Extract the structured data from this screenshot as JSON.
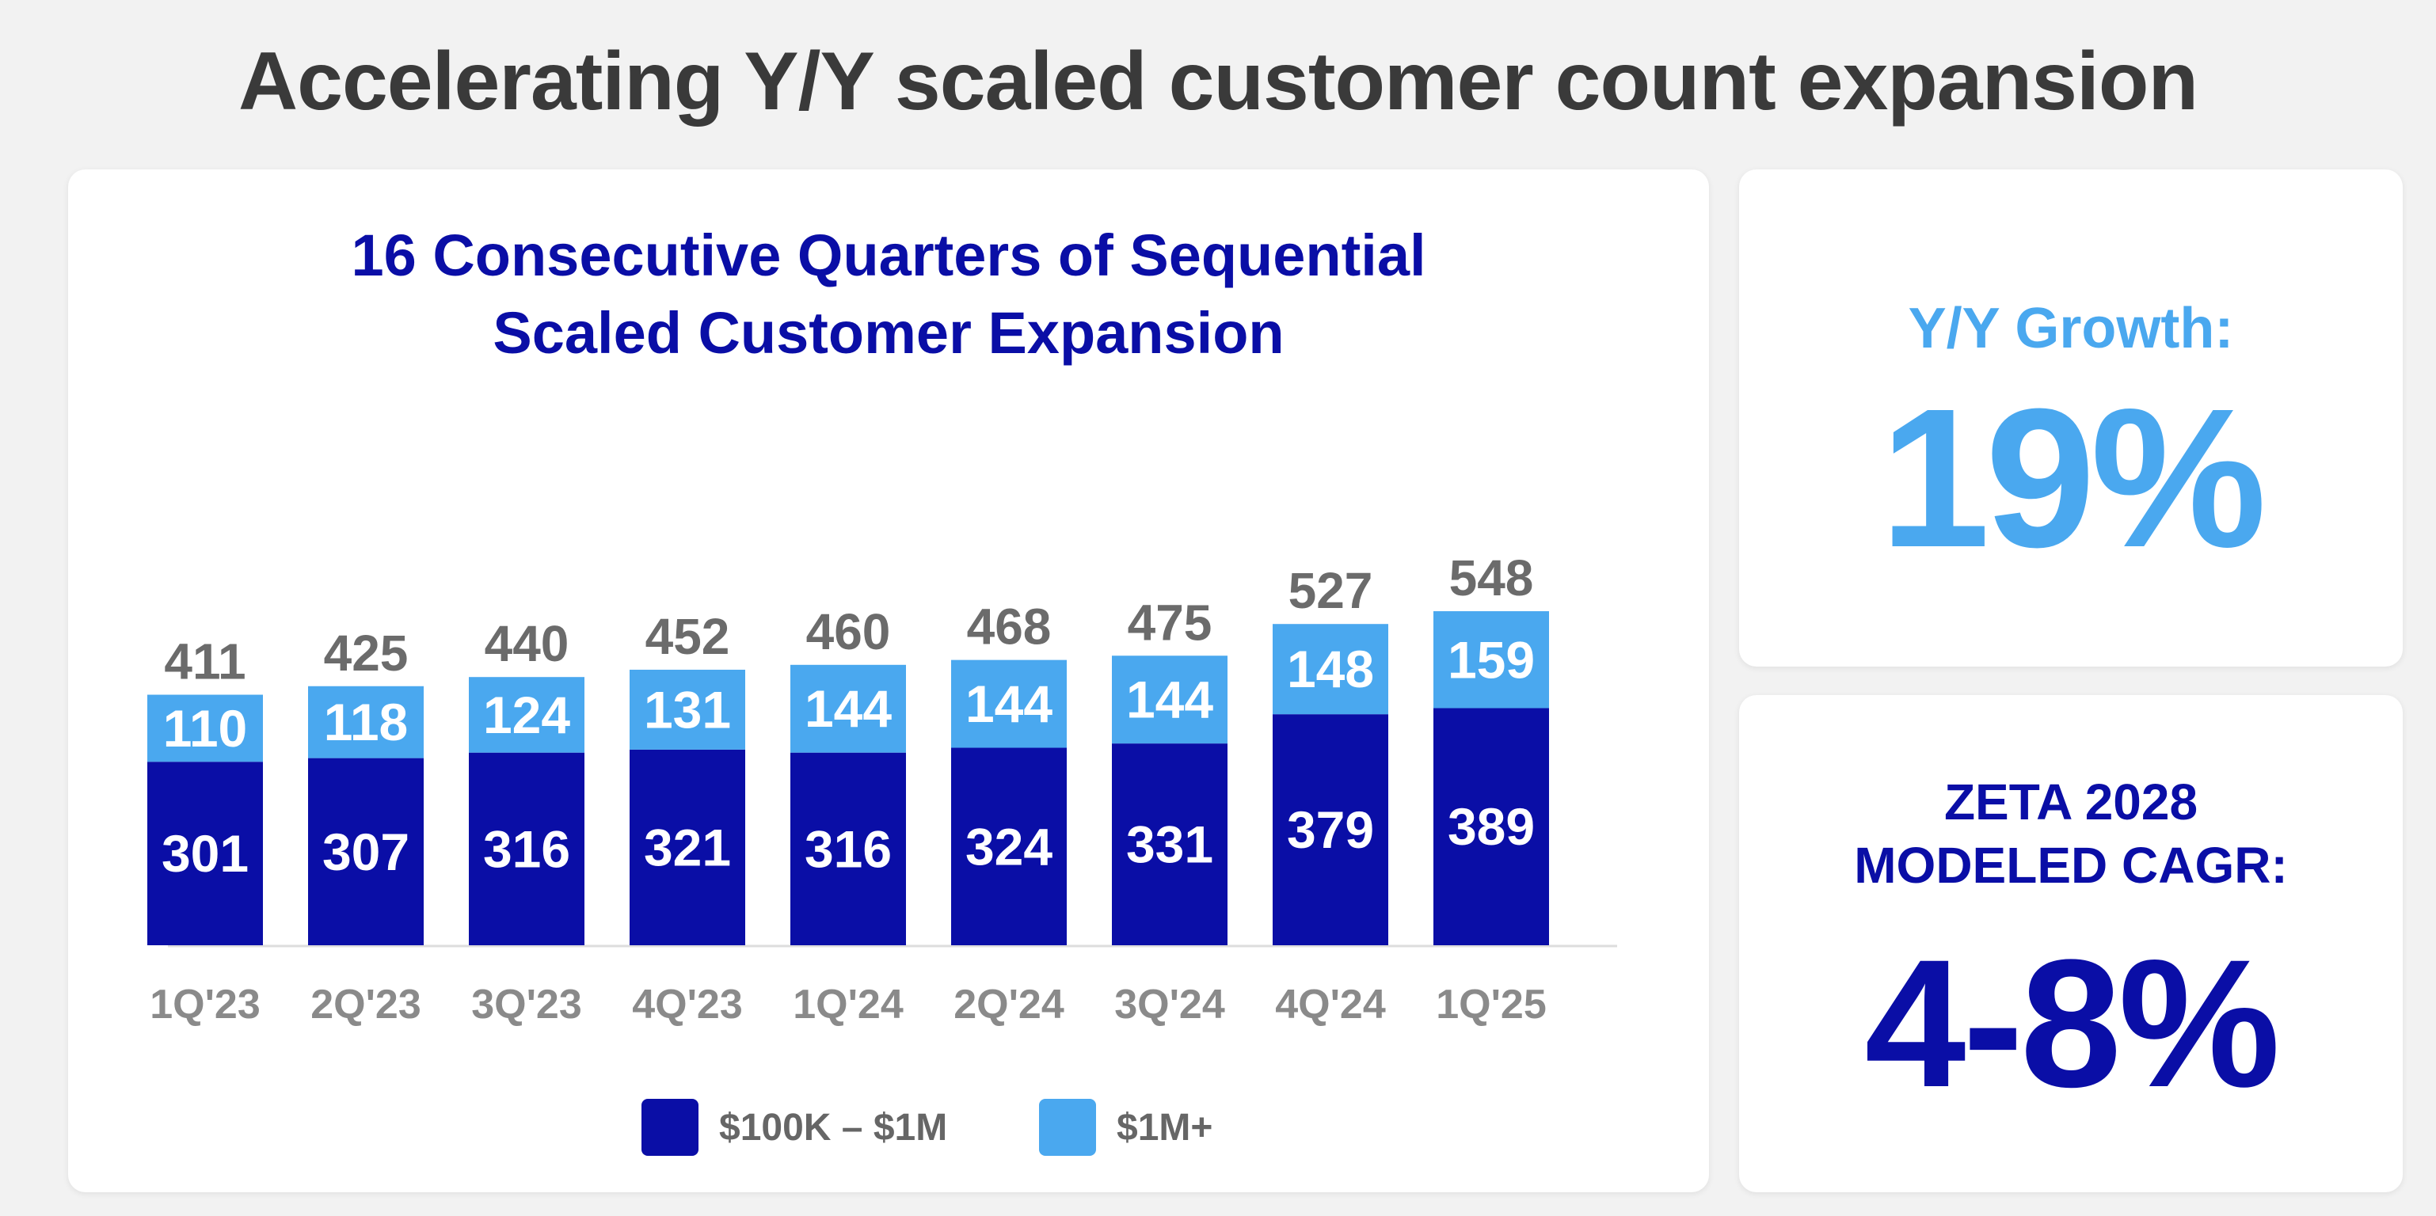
{
  "title": "Accelerating Y/Y scaled customer count expansion",
  "chart_data": {
    "type": "bar",
    "stacked": true,
    "title_lines": [
      "16 Consecutive Quarters of Sequential",
      "Scaled Customer Expansion"
    ],
    "categories": [
      "1Q'23",
      "2Q'23",
      "3Q'23",
      "4Q'23",
      "1Q'24",
      "2Q'24",
      "3Q'24",
      "4Q'24",
      "1Q'25"
    ],
    "series": [
      {
        "name": "$100K – $1M",
        "color": "#0a0ea6",
        "values": [
          301,
          307,
          316,
          321,
          316,
          324,
          331,
          379,
          389
        ]
      },
      {
        "name": "$1M+",
        "color": "#4aa8ef",
        "values": [
          110,
          118,
          124,
          131,
          144,
          144,
          144,
          148,
          159
        ]
      }
    ],
    "totals": [
      411,
      425,
      440,
      452,
      460,
      468,
      475,
      527,
      548
    ],
    "legend_position": "bottom",
    "grid": false
  },
  "growth": {
    "label": "Y/Y Growth:",
    "value": "19%"
  },
  "cagr": {
    "label_lines": [
      "ZETA 2028",
      "MODELED CAGR:"
    ],
    "value": "4-8%"
  }
}
